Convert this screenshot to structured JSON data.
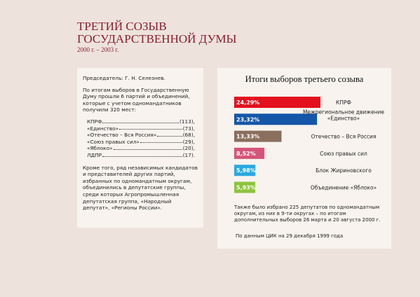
{
  "header": {
    "title_line1": "ТРЕТИЙ СОЗЫВ",
    "title_line2": "ГОСУДАРСТВЕННОЙ ДУМЫ",
    "subtitle": "2000 г. – 2003 г."
  },
  "left_panel": {
    "chairman": "Председатель: Г. Н. Селезнев.",
    "intro": "По итогам выборов в Государственную Думу прошли 6 партий и объединений, которые с учетом одномандатников получили 320 мест:",
    "list": [
      {
        "name": "КПРФ",
        "count": "(113),"
      },
      {
        "name": "«Единство»",
        "count": "(73),"
      },
      {
        "name": "«Отечество – Вся Россия»",
        "count": "(68),"
      },
      {
        "name": "«Союз правых сил»",
        "count": "(29),"
      },
      {
        "name": "«Яблоко»",
        "count": "(20),"
      },
      {
        "name": "ЛДПР",
        "count": "(17)."
      }
    ],
    "outro": "Кроме того, ряд независимых кандидатов и представителей других партий, избранных по одномандатным округам, объединились в депутатские группы, среди которых Агропромышленная депутатская группа, «Народный депутат», «Регионы России»."
  },
  "chart_data": {
    "type": "bar",
    "orientation": "horizontal",
    "title": "Итоги выборов третьего созыва",
    "categories": [
      "КПРФ",
      "Межрегиональное движение «Единство»",
      "Отечество – Вся Россия",
      "Союз правых сил",
      "Блок Жириновского",
      "Объединение «Яблоко»"
    ],
    "values": [
      24.29,
      23.32,
      13.33,
      8.52,
      5.98,
      5.93
    ],
    "value_labels": [
      "24,29%",
      "23,32%",
      "13,33%",
      "8,52%",
      "5,98%",
      "5,93%"
    ],
    "colors": [
      "#e3101e",
      "#1456a8",
      "#8a6f5e",
      "#d4557a",
      "#2aa9e0",
      "#8cc43c"
    ],
    "note": "Также было избрано 225 депутатов по одномандатным округам, из них в 9-ти округах – по итогам дополнительных выборов 26 марта и 20 августа 2000 г.",
    "source": "По данным ЦИК на 29 декабря 1999 года"
  }
}
